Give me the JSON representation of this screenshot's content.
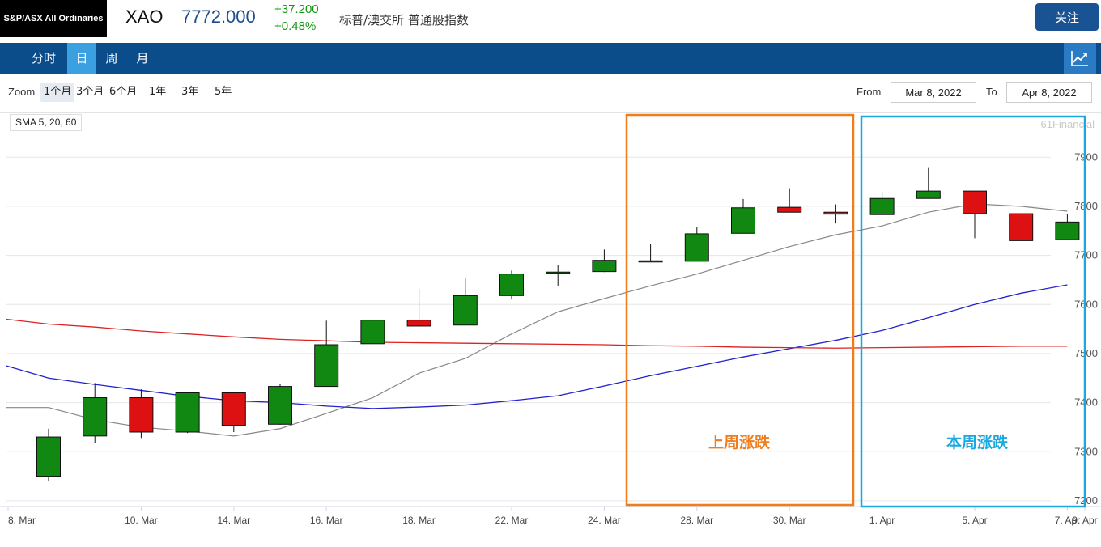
{
  "header": {
    "index_name": "S&P/ASX All Ordinaries",
    "symbol": "XAO",
    "last_price": "7772.000",
    "change": "+37.200",
    "change_pct": "+0.48%",
    "description": "标普/澳交所 普通股指数",
    "follow_label": "关注"
  },
  "nav": {
    "tabs": [
      {
        "label": "分时",
        "active": false
      },
      {
        "label": "日",
        "active": true
      },
      {
        "label": "周",
        "active": false
      },
      {
        "label": "月",
        "active": false
      }
    ],
    "chart_icon": "line-chart-icon"
  },
  "zoom": {
    "label": "Zoom",
    "buttons": [
      {
        "label": "1个月",
        "active": true
      },
      {
        "label": "3个月",
        "active": false
      },
      {
        "label": "6个月",
        "active": false
      },
      {
        "label": "1年",
        "active": false
      },
      {
        "label": "3年",
        "active": false
      },
      {
        "label": "5年",
        "active": false
      }
    ],
    "from_label": "From",
    "from_value": "Mar 8, 2022",
    "to_label": "To",
    "to_value": "Apr 8, 2022"
  },
  "indicator_label": "SMA 5, 20, 60",
  "watermark": "61Financial",
  "annotations": [
    {
      "text": "上周涨跌",
      "color": "#f07c1c"
    },
    {
      "text": "本周涨跌",
      "color": "#1ba8e0"
    }
  ],
  "colors": {
    "up": "#118811",
    "down": "#dd1111",
    "sma5": "#888888",
    "sma20": "#2222cc",
    "sma60": "#dd2222",
    "nav_bg": "#0b4c8a",
    "nav_active": "#3aa0e0"
  },
  "chart_data": {
    "type": "candlestick",
    "ylim": [
      7190,
      7940
    ],
    "yticks": [
      7200,
      7300,
      7400,
      7500,
      7600,
      7700,
      7800,
      7900
    ],
    "x_tick_labels": [
      "8. Mar",
      "10. Mar",
      "14. Mar",
      "16. Mar",
      "18. Mar",
      "22. Mar",
      "24. Mar",
      "28. Mar",
      "30. Mar",
      "1. Apr",
      "5. Apr",
      "7. Apr",
      "9. Apr"
    ],
    "candles": [
      {
        "date": "Mar 8",
        "open": 7250,
        "high": 7347,
        "low": 7240,
        "close": 7330
      },
      {
        "date": "Mar 9",
        "open": 7332,
        "high": 7440,
        "low": 7318,
        "close": 7410
      },
      {
        "date": "Mar 10",
        "open": 7410,
        "high": 7427,
        "low": 7328,
        "close": 7340
      },
      {
        "date": "Mar 11",
        "open": 7340,
        "high": 7420,
        "low": 7338,
        "close": 7420
      },
      {
        "date": "Mar 14",
        "open": 7420,
        "high": 7422,
        "low": 7340,
        "close": 7354
      },
      {
        "date": "Mar 15",
        "open": 7356,
        "high": 7438,
        "low": 7355,
        "close": 7433
      },
      {
        "date": "Mar 16",
        "open": 7433,
        "high": 7567,
        "low": 7433,
        "close": 7518
      },
      {
        "date": "Mar 17",
        "open": 7520,
        "high": 7568,
        "low": 7520,
        "close": 7568
      },
      {
        "date": "Mar 18",
        "open": 7568,
        "high": 7632,
        "low": 7556,
        "close": 7556
      },
      {
        "date": "Mar 21",
        "open": 7558,
        "high": 7653,
        "low": 7558,
        "close": 7618
      },
      {
        "date": "Mar 22",
        "open": 7618,
        "high": 7669,
        "low": 7610,
        "close": 7662
      },
      {
        "date": "Mar 23",
        "open": 7664,
        "high": 7680,
        "low": 7637,
        "close": 7666
      },
      {
        "date": "Mar 24",
        "open": 7667,
        "high": 7712,
        "low": 7666,
        "close": 7690
      },
      {
        "date": "Mar 25",
        "open": 7689,
        "high": 7723,
        "low": 7688,
        "close": 7689
      },
      {
        "date": "Mar 28",
        "open": 7688,
        "high": 7757,
        "low": 7688,
        "close": 7744
      },
      {
        "date": "Mar 29",
        "open": 7745,
        "high": 7815,
        "low": 7745,
        "close": 7797
      },
      {
        "date": "Mar 30",
        "open": 7798,
        "high": 7837,
        "low": 7788,
        "close": 7788
      },
      {
        "date": "Mar 31",
        "open": 7788,
        "high": 7804,
        "low": 7765,
        "close": 7784
      },
      {
        "date": "Apr 1",
        "open": 7783,
        "high": 7830,
        "low": 7783,
        "close": 7816
      },
      {
        "date": "Apr 4",
        "open": 7816,
        "high": 7878,
        "low": 7816,
        "close": 7831
      },
      {
        "date": "Apr 5",
        "open": 7831,
        "high": 7831,
        "low": 7735,
        "close": 7785
      },
      {
        "date": "Apr 6",
        "open": 7785,
        "high": 7785,
        "low": 7730,
        "close": 7730
      },
      {
        "date": "Apr 7",
        "open": 7732,
        "high": 7785,
        "low": 7732,
        "close": 7768
      }
    ],
    "series": [
      {
        "name": "SMA 5",
        "values": [
          7390,
          7365,
          7350,
          7342,
          7332,
          7347,
          7378,
          7410,
          7460,
          7490,
          7540,
          7585,
          7612,
          7638,
          7662,
          7690,
          7718,
          7742,
          7760,
          7788,
          7805,
          7800,
          7790
        ]
      },
      {
        "name": "SMA 20",
        "values": [
          7450,
          7437,
          7425,
          7413,
          7404,
          7400,
          7393,
          7388,
          7391,
          7395,
          7404,
          7414,
          7434,
          7455,
          7474,
          7493,
          7510,
          7527,
          7547,
          7573,
          7600,
          7623,
          7640
        ]
      },
      {
        "name": "SMA 60",
        "values": [
          7560,
          7554,
          7546,
          7540,
          7534,
          7529,
          7526,
          7523,
          7522,
          7521,
          7520,
          7519,
          7518,
          7516,
          7515,
          7513,
          7512,
          7511,
          7512,
          7513,
          7514,
          7515,
          7515
        ]
      }
    ]
  }
}
